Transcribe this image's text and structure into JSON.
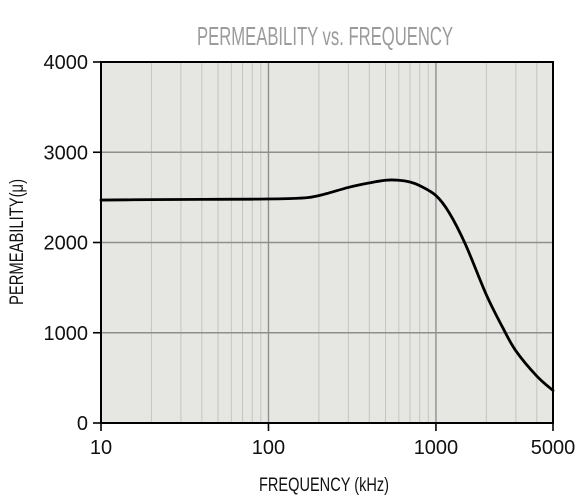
{
  "chart_data": {
    "type": "line",
    "title": "PERMEABILITY vs. FREQUENCY",
    "xlabel": "FREQUENCY (kHz)",
    "ylabel": "PERMEABILITY(μ)",
    "x_scale": "log",
    "xlim": [
      10,
      5000
    ],
    "ylim": [
      0,
      4000
    ],
    "x_ticks": [
      10,
      100,
      1000,
      5000
    ],
    "x_tick_labels": [
      "10",
      "100",
      "1000",
      "5000"
    ],
    "y_ticks": [
      0,
      1000,
      2000,
      3000,
      4000
    ],
    "y_tick_labels": [
      "0",
      "1000",
      "2000",
      "3000",
      "4000"
    ],
    "grid": true,
    "legend": "none",
    "series": [
      {
        "x": [
          10,
          20,
          40,
          80,
          150,
          200,
          300,
          400,
          500,
          600,
          700,
          800,
          1000,
          1200,
          1500,
          2000,
          2500,
          3000,
          4000,
          5000
        ],
        "y": [
          2470,
          2475,
          2478,
          2480,
          2490,
          2520,
          2610,
          2660,
          2690,
          2690,
          2670,
          2630,
          2520,
          2330,
          1980,
          1420,
          1060,
          800,
          520,
          360
        ]
      }
    ]
  },
  "colors": {
    "plot_background": "#e6e6e2",
    "grid_minor": "#c4c4c0",
    "grid_major": "#8e8e8e",
    "curve": "#000000",
    "title": "#9b9b9b",
    "text": "#111111"
  }
}
